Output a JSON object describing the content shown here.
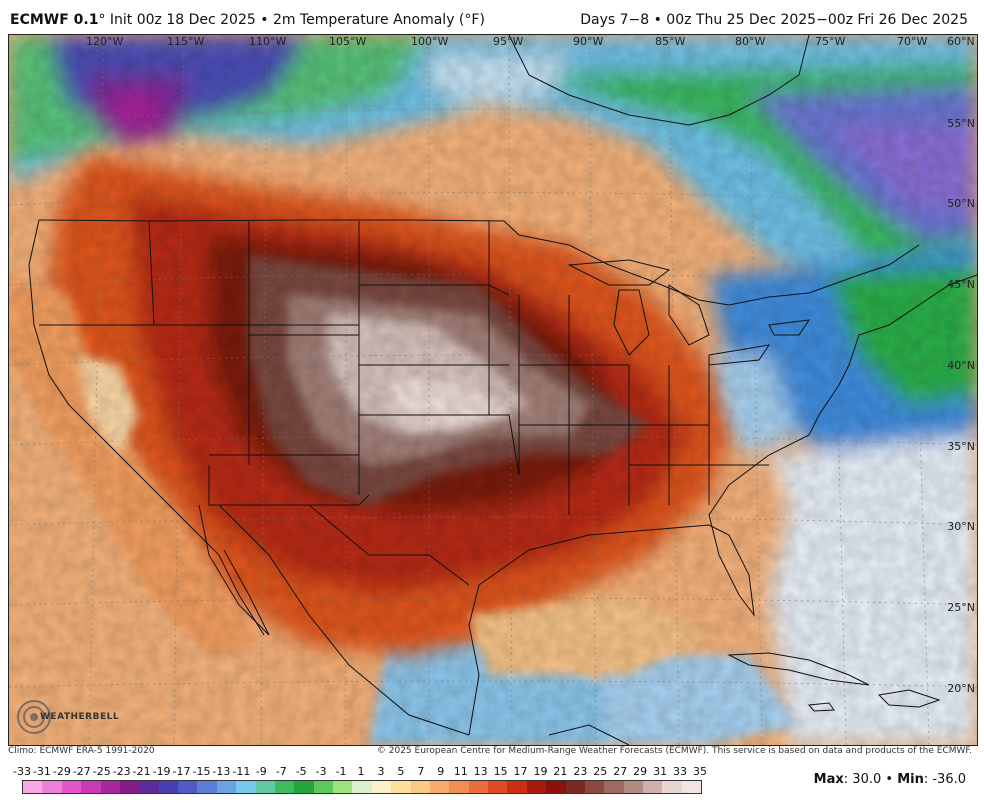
{
  "header": {
    "model": "ECMWF 0.1",
    "model_suffix": "° Init 00z 18 Dec 2025 • 2m Temperature Anomaly (°F)",
    "valid": "Days 7−8 • 00z Thu 25 Dec 2025−00z Fri 26 Dec 2025"
  },
  "longitudes": [
    "120°W",
    "115°W",
    "110°W",
    "105°W",
    "100°W",
    "95°W",
    "90°W",
    "85°W",
    "80°W",
    "75°W",
    "70°W",
    "60°N"
  ],
  "latitudes": [
    "55°N",
    "50°N",
    "45°N",
    "40°N",
    "35°N",
    "30°N",
    "25°N",
    "20°N"
  ],
  "footer": {
    "climo": "Clim​o: ECMWF ERA-5 1991-2020",
    "copyright": "© 2025 European Centre for Medium-Range Weather Forecasts (ECMWF). This service is based on data and products of the ECMWF."
  },
  "colorbar": {
    "ticks": [
      "-33",
      "-31",
      "-29",
      "-27",
      "-25",
      "-23",
      "-21",
      "-19",
      "-17",
      "-15",
      "-13",
      "-11",
      "-9",
      "-7",
      "-5",
      "-3",
      "-1",
      "1",
      "3",
      "5",
      "7",
      "9",
      "11",
      "13",
      "15",
      "17",
      "19",
      "21",
      "23",
      "25",
      "27",
      "29",
      "31",
      "33",
      "35"
    ],
    "colors": [
      "#f7a8e8",
      "#ee7fd9",
      "#e157c9",
      "#c93bb6",
      "#a8279d",
      "#861b86",
      "#5a2b9a",
      "#4a3fb0",
      "#4f5cc8",
      "#5b7fd8",
      "#6aa2e4",
      "#79c6ee",
      "#60c9a0",
      "#3dbb5d",
      "#22a63b",
      "#5cc95a",
      "#9ee27e",
      "#d8f0d0",
      "#fdf1c8",
      "#fde0a0",
      "#fbc885",
      "#f7ac6c",
      "#f28e52",
      "#ea6d3c",
      "#de4a25",
      "#c92f15",
      "#a81b0c",
      "#8a1208",
      "#7a2a1e",
      "#8b4a40",
      "#9c6a60",
      "#b38a82",
      "#cfb0aa",
      "#e8d4d0",
      "#f2e4e2"
    ]
  },
  "stats": {
    "max_label": "Max",
    "max_value": ": 30.0",
    "sep": " • ",
    "min_label": "Min",
    "min_value": ": -36.0"
  },
  "logo": {
    "text": "WEATHERBELL"
  }
}
